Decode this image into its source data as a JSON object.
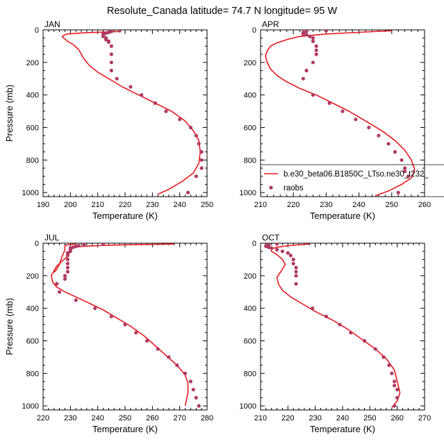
{
  "title": "Resolute_Canada  latitude= 74.7 N longitude= 95 W",
  "colors": {
    "model": "#e8191f",
    "obs": "#b03a62",
    "axis": "#000000"
  },
  "legend": {
    "model_label": "b.e30_beta06.B1850C_LTso.ne30_t232_",
    "obs_label": "raobs"
  },
  "chart_data": [
    {
      "type": "line",
      "month": "JAN",
      "xlabel": "Temperature (K)",
      "ylabel": "Pressure (mb)",
      "xlim": [
        190,
        250
      ],
      "xticks": [
        190,
        200,
        210,
        220,
        230,
        240,
        250
      ],
      "ylim": [
        0,
        1025
      ],
      "yticks": [
        0,
        200,
        400,
        600,
        800,
        1000
      ],
      "y_inverted": true,
      "series": [
        {
          "role": "model",
          "x": [
            218,
            205,
            199,
            198,
            197,
            197.5,
            199,
            201,
            203,
            204,
            205,
            207,
            210,
            214,
            219,
            225,
            231,
            237,
            242,
            245,
            247,
            247.5,
            247,
            245,
            241,
            236,
            232
          ],
          "y": [
            10,
            18,
            25,
            30,
            40,
            50,
            70,
            90,
            120,
            150,
            180,
            220,
            260,
            300,
            350,
            400,
            450,
            500,
            560,
            620,
            680,
            750,
            820,
            880,
            930,
            980,
            1010
          ]
        },
        {
          "role": "obs",
          "x": [
            218,
            215,
            214,
            213,
            212,
            212,
            212,
            212,
            213,
            213,
            214,
            214,
            215,
            215,
            215,
            215,
            217,
            222,
            226,
            231,
            235,
            240,
            244,
            246,
            247,
            248,
            248,
            248,
            246,
            243
          ],
          "y": [
            5,
            10,
            15,
            20,
            25,
            30,
            35,
            40,
            50,
            60,
            70,
            75,
            100,
            150,
            200,
            250,
            300,
            350,
            400,
            450,
            500,
            550,
            600,
            650,
            700,
            750,
            800,
            850,
            900,
            1000
          ]
        }
      ]
    },
    {
      "type": "line",
      "month": "APR",
      "xlabel": "Temperature (K)",
      "ylabel": "",
      "xlim": [
        210,
        260
      ],
      "xticks": [
        210,
        220,
        230,
        240,
        250,
        260
      ],
      "ylim": [
        0,
        1025
      ],
      "yticks": [
        0,
        200,
        400,
        600,
        800,
        1000
      ],
      "y_inverted": true,
      "series": [
        {
          "role": "model",
          "x": [
            250,
            240,
            230,
            222,
            218,
            215,
            213,
            212,
            211.5,
            212,
            213,
            215,
            218,
            222,
            227,
            232,
            237,
            242,
            247,
            251,
            254,
            256,
            257,
            256,
            253,
            249,
            245
          ],
          "y": [
            5,
            15,
            25,
            40,
            60,
            80,
            100,
            130,
            160,
            200,
            240,
            280,
            320,
            360,
            400,
            450,
            500,
            560,
            620,
            680,
            740,
            800,
            860,
            910,
            950,
            990,
            1020
          ]
        },
        {
          "role": "obs",
          "x": [
            230,
            224,
            223,
            223,
            223,
            224,
            225,
            226,
            226,
            227,
            227,
            227,
            226,
            224,
            223,
            226,
            231,
            235,
            239,
            243,
            246,
            249,
            251,
            253,
            254,
            254,
            255,
            252
          ],
          "y": [
            5,
            10,
            15,
            20,
            25,
            30,
            40,
            50,
            70,
            100,
            125,
            150,
            200,
            250,
            300,
            400,
            450,
            500,
            550,
            600,
            650,
            700,
            750,
            800,
            850,
            870,
            900,
            1000
          ]
        }
      ]
    },
    {
      "type": "line",
      "month": "JUL",
      "xlabel": "Temperature (K)",
      "ylabel": "Pressure (mb)",
      "xlim": [
        220,
        280
      ],
      "xticks": [
        220,
        230,
        240,
        250,
        260,
        270,
        280
      ],
      "ylim": [
        0,
        1025
      ],
      "yticks": [
        0,
        200,
        400,
        600,
        800,
        1000
      ],
      "y_inverted": true,
      "series": [
        {
          "role": "model",
          "x": [
            268,
            250,
            240,
            234,
            231,
            230,
            230,
            229,
            227,
            225,
            224,
            223,
            223.5,
            225,
            228,
            232,
            237,
            242,
            247,
            252,
            257,
            261,
            265,
            269,
            272,
            273,
            273,
            272
          ],
          "y": [
            5,
            10,
            15,
            20,
            25,
            30,
            50,
            80,
            110,
            140,
            170,
            200,
            240,
            270,
            300,
            330,
            370,
            410,
            460,
            510,
            570,
            630,
            690,
            750,
            810,
            860,
            920,
            1000
          ]
        },
        {
          "role": "model",
          "x": [
            232,
            229,
            228,
            228,
            228,
            227,
            226,
            225,
            224
          ],
          "y": [
            5,
            10,
            15,
            25,
            40,
            80,
            130,
            160,
            180
          ]
        },
        {
          "role": "obs",
          "x": [
            242,
            235,
            233,
            232,
            231,
            230,
            230,
            230,
            229,
            229,
            229,
            229,
            229,
            229,
            228,
            228,
            225,
            226,
            232,
            239,
            245,
            250,
            254,
            258,
            262,
            266,
            269,
            272,
            274,
            275,
            276,
            277
          ],
          "y": [
            5,
            10,
            15,
            20,
            25,
            30,
            40,
            50,
            60,
            75,
            100,
            125,
            150,
            175,
            200,
            220,
            250,
            300,
            350,
            400,
            450,
            500,
            550,
            600,
            650,
            700,
            750,
            800,
            850,
            900,
            950,
            1000
          ]
        }
      ]
    },
    {
      "type": "line",
      "month": "OCT",
      "xlabel": "Temperature (K)",
      "ylabel": "",
      "xlim": [
        210,
        270
      ],
      "xticks": [
        210,
        220,
        230,
        240,
        250,
        260,
        270
      ],
      "ylim": [
        0,
        1025
      ],
      "yticks": [
        0,
        200,
        400,
        600,
        800,
        1000
      ],
      "y_inverted": true,
      "series": [
        {
          "role": "model",
          "x": [
            228,
            220,
            216,
            214,
            214,
            216,
            218,
            219,
            218,
            216,
            216.5,
            218,
            221,
            225,
            230,
            236,
            242,
            247,
            252,
            256,
            259,
            260,
            261,
            260,
            258
          ],
          "y": [
            5,
            15,
            25,
            35,
            50,
            70,
            100,
            130,
            160,
            210,
            250,
            290,
            330,
            370,
            420,
            470,
            530,
            590,
            650,
            710,
            780,
            850,
            920,
            970,
            1010
          ]
        },
        {
          "role": "obs",
          "x": [
            216,
            213,
            212,
            212,
            213,
            214,
            216,
            218,
            220,
            221,
            222,
            222,
            223,
            223,
            223,
            223,
            229,
            234,
            239,
            243,
            248,
            252,
            255,
            257,
            258,
            259,
            259,
            260,
            260,
            259
          ],
          "y": [
            5,
            10,
            15,
            20,
            25,
            30,
            40,
            50,
            60,
            75,
            100,
            125,
            150,
            175,
            200,
            250,
            400,
            450,
            500,
            550,
            600,
            650,
            700,
            750,
            800,
            850,
            875,
            900,
            950,
            1000
          ]
        }
      ]
    }
  ]
}
